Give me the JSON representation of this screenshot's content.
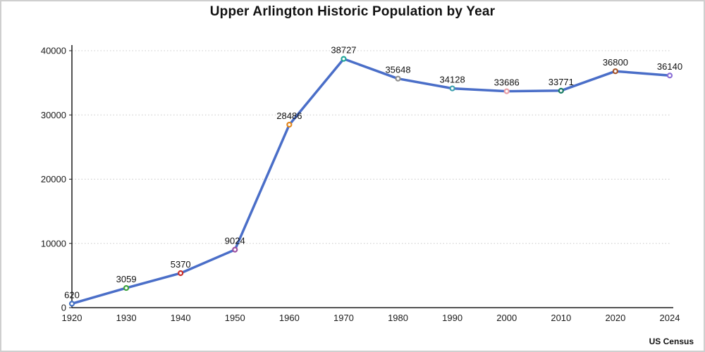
{
  "title": "Upper Arlington Historic Population by Year",
  "source_label": "US Census",
  "colors": {
    "line": "#4a6ec8",
    "axis": "#1a1a1a",
    "gridline": "#c9c9c9",
    "background": "#ffffff",
    "border": "#cfcfcf",
    "text": "#111111"
  },
  "chart_data": {
    "type": "line",
    "title": "Upper Arlington Historic Population by Year",
    "categories": [
      "1920",
      "1930",
      "1940",
      "1950",
      "1960",
      "1970",
      "1980",
      "1990",
      "2000",
      "2010",
      "2020",
      "2024"
    ],
    "values": [
      620,
      3059,
      5370,
      9024,
      28486,
      38727,
      35648,
      34128,
      33686,
      33771,
      36800,
      36140
    ],
    "data_labels": [
      "620",
      "3059",
      "5370",
      "9024",
      "28486",
      "38727",
      "35648",
      "34128",
      "33686",
      "33771",
      "36800",
      "36140"
    ],
    "marker_colors": [
      "#4472c4",
      "#3da33d",
      "#c9302c",
      "#9b4fa0",
      "#e2851b",
      "#21a699",
      "#8e8e8e",
      "#3d9fae",
      "#e89ca4",
      "#177a62",
      "#a5542a",
      "#8b6fd6"
    ],
    "xlabel": "",
    "ylabel": "",
    "ylim": [
      0,
      40000
    ],
    "yticks": [
      0,
      10000,
      20000,
      30000,
      40000
    ],
    "ytick_labels": [
      "0",
      "10000",
      "20000",
      "30000",
      "40000"
    ],
    "grid": "horizontal-dotted",
    "legend_position": "none",
    "annotation": "US Census"
  }
}
